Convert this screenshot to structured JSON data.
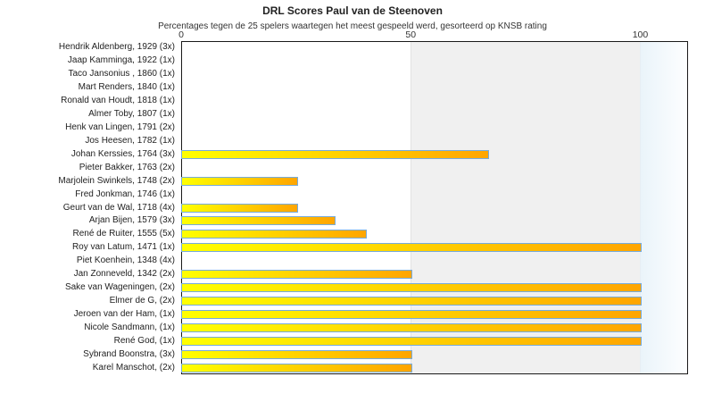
{
  "colors": {
    "bar_gradient_start": "#ffff00",
    "bar_gradient_end": "#ffa500",
    "bar_border": "#76abdb",
    "band_50_100": "#f0f0f0",
    "band_over_100": "#eaf4fa",
    "plot_border": "#1a1a1a",
    "text": "#222222"
  },
  "chart_data": {
    "type": "bar",
    "orientation": "horizontal",
    "title": "DRL Scores Paul van de Steenoven",
    "subtitle": "Percentages tegen de 25 spelers waartegen het meest gespeeld werd, gesorteerd op KNSB rating",
    "xlabel": "",
    "ylabel": "",
    "xlim": [
      0,
      110.4
    ],
    "x_ticks": [
      0,
      50,
      100
    ],
    "grid": "off",
    "legend": "none",
    "bands": [
      {
        "name": "shaded-50-100",
        "from": 50,
        "to": 100
      },
      {
        "name": "shaded-over-100",
        "from": 100,
        "to": 110.4
      }
    ],
    "categories": [
      "Hendrik Aldenberg, 1929 (3x)",
      "Jaap Kamminga, 1922 (1x)",
      "Taco Jansonius , 1860 (1x)",
      "Mart Renders, 1840 (1x)",
      "Ronald van Houdt, 1818 (1x)",
      "Almer Toby, 1807 (1x)",
      "Henk van Lingen, 1791 (2x)",
      "Jos Heesen, 1782 (1x)",
      "Johan Kerssies, 1764 (3x)",
      "Pieter Bakker, 1763 (2x)",
      "Marjolein Swinkels, 1748 (2x)",
      "Fred Jonkman, 1746 (1x)",
      "Geurt van de Wal, 1718 (4x)",
      "Arjan Bijen, 1579 (3x)",
      "René de Ruiter, 1555 (5x)",
      "Roy van Latum, 1471 (1x)",
      "Piet Koenhein, 1348 (4x)",
      "Jan Zonneveld, 1342 (2x)",
      "Sake van Wageningen,  (2x)",
      "Elmer de G,  (2x)",
      "Jeroen van der Ham,  (1x)",
      "Nicole Sandmann,  (1x)",
      "René God,  (1x)",
      "Sybrand Boonstra,  (3x)",
      "Karel Manschot,  (2x)"
    ],
    "values": [
      0,
      0,
      0,
      0,
      0,
      0,
      0,
      0,
      66.7,
      0,
      25,
      0,
      25,
      33.3,
      40,
      100,
      0,
      50,
      100,
      100,
      100,
      100,
      100,
      50,
      50
    ]
  }
}
